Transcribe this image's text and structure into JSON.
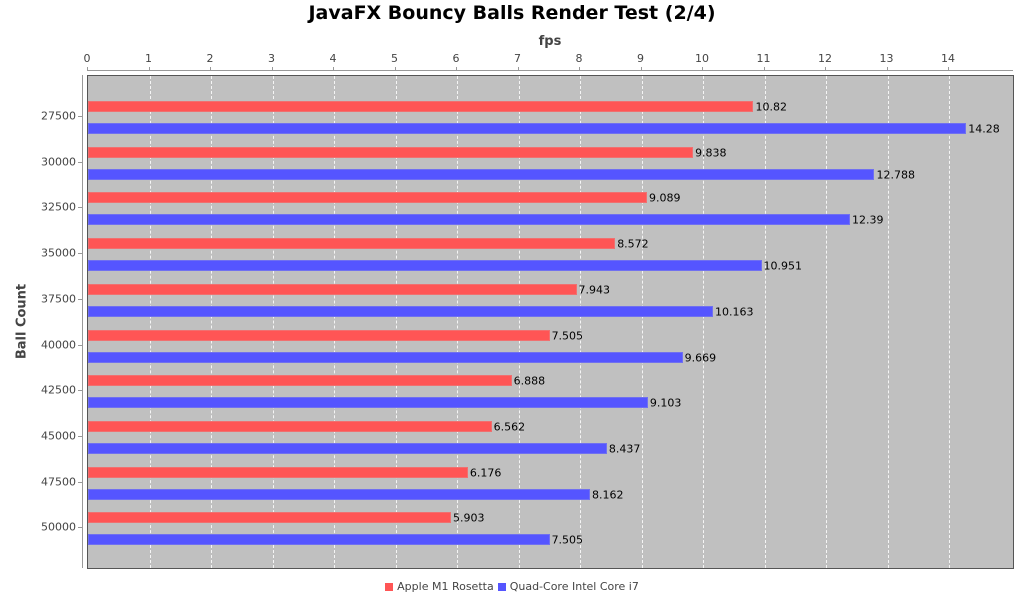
{
  "chart_data": {
    "type": "bar",
    "orientation": "horizontal",
    "title": "JavaFX Bouncy Balls Render Test (2/4)",
    "xlabel": "fps",
    "ylabel": "Ball Count",
    "xlim": [
      0,
      15.04
    ],
    "x_ticks": [
      "0",
      "1",
      "2",
      "3",
      "4",
      "5",
      "6",
      "7",
      "8",
      "9",
      "10",
      "11",
      "12",
      "13",
      "14"
    ],
    "x_axis_position": "top",
    "grid": true,
    "legend_position": "bottom",
    "categories": [
      "27500",
      "30000",
      "32500",
      "35000",
      "37500",
      "40000",
      "42500",
      "45000",
      "47500",
      "50000"
    ],
    "series": [
      {
        "name": "Apple M1 Rosetta",
        "color": "#ff5555",
        "values": [
          10.82,
          9.838,
          9.089,
          8.572,
          7.943,
          7.505,
          6.888,
          6.562,
          6.176,
          5.903
        ],
        "labels": [
          "10.82",
          "9.838",
          "9.089",
          "8.572",
          "7.943",
          "7.505",
          "6.888",
          "6.562",
          "6.176",
          "5.903"
        ]
      },
      {
        "name": "Quad-Core Intel Core i7",
        "color": "#5555ff",
        "values": [
          14.28,
          12.788,
          12.39,
          10.951,
          10.163,
          9.669,
          9.103,
          8.437,
          8.162,
          7.505
        ],
        "labels": [
          "14.28",
          "12.788",
          "12.39",
          "10.951",
          "10.163",
          "9.669",
          "9.103",
          "8.437",
          "8.162",
          "7.505"
        ]
      }
    ]
  }
}
